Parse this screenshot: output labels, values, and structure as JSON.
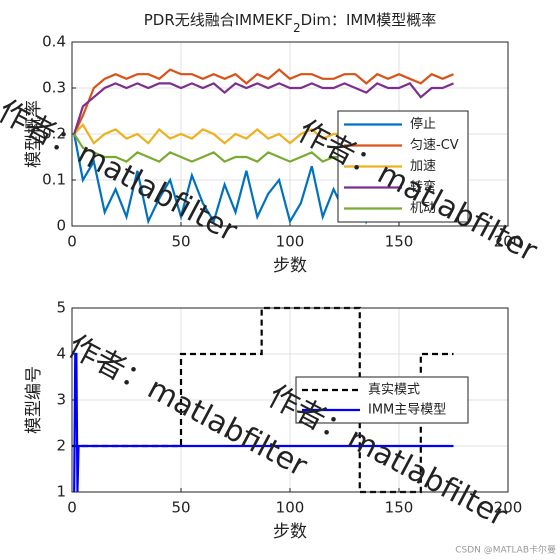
{
  "chart_data": [
    {
      "type": "line",
      "title": [
        "PDR无线融合IMMEKF",
        "2",
        "Dim：IMM模型概率"
      ],
      "xlabel": "步数",
      "ylabel": "模型概率",
      "x": [
        1,
        5,
        10,
        15,
        20,
        25,
        30,
        35,
        40,
        45,
        50,
        55,
        60,
        65,
        70,
        75,
        80,
        85,
        90,
        95,
        100,
        105,
        110,
        115,
        120,
        125,
        130,
        135,
        140,
        145,
        150,
        155,
        160,
        165,
        170,
        175
      ],
      "series": [
        {
          "name": "停止",
          "color": "#0072bd",
          "values": [
            0.2,
            0.1,
            0.14,
            0.03,
            0.08,
            0.02,
            0.12,
            0.01,
            0.06,
            0.1,
            0.02,
            0.11,
            0.05,
            0.01,
            0.09,
            0.03,
            0.12,
            0.02,
            0.07,
            0.1,
            0.01,
            0.05,
            0.13,
            0.02,
            0.08,
            0.03,
            0.11,
            0.01,
            0.06,
            0.1,
            0.02,
            0.09,
            0.04,
            0.12,
            0.02,
            0.05
          ]
        },
        {
          "name": "匀速-CV",
          "color": "#d95319",
          "values": [
            0.2,
            0.24,
            0.3,
            0.32,
            0.33,
            0.32,
            0.33,
            0.33,
            0.32,
            0.34,
            0.33,
            0.33,
            0.32,
            0.33,
            0.32,
            0.33,
            0.31,
            0.33,
            0.32,
            0.34,
            0.32,
            0.33,
            0.33,
            0.32,
            0.32,
            0.33,
            0.33,
            0.31,
            0.33,
            0.32,
            0.33,
            0.32,
            0.31,
            0.33,
            0.32,
            0.33
          ]
        },
        {
          "name": "加速",
          "color": "#edb120",
          "values": [
            0.2,
            0.22,
            0.18,
            0.2,
            0.21,
            0.19,
            0.2,
            0.18,
            0.21,
            0.19,
            0.2,
            0.19,
            0.21,
            0.2,
            0.18,
            0.2,
            0.19,
            0.21,
            0.19,
            0.2,
            0.18,
            0.2,
            0.21,
            0.19,
            0.2,
            0.2,
            0.18,
            0.2,
            0.19,
            0.21,
            0.19,
            0.2,
            0.18,
            0.2,
            0.19,
            0.2
          ]
        },
        {
          "name": "转弯",
          "color": "#7e2f8e",
          "values": [
            0.2,
            0.26,
            0.28,
            0.3,
            0.31,
            0.3,
            0.31,
            0.3,
            0.31,
            0.31,
            0.3,
            0.31,
            0.3,
            0.31,
            0.29,
            0.31,
            0.3,
            0.31,
            0.3,
            0.31,
            0.3,
            0.3,
            0.31,
            0.3,
            0.3,
            0.31,
            0.3,
            0.29,
            0.31,
            0.3,
            0.3,
            0.31,
            0.28,
            0.3,
            0.3,
            0.31
          ]
        },
        {
          "name": "机动",
          "color": "#77ac30",
          "values": [
            0.2,
            0.17,
            0.16,
            0.15,
            0.15,
            0.14,
            0.16,
            0.15,
            0.14,
            0.16,
            0.15,
            0.14,
            0.15,
            0.16,
            0.14,
            0.15,
            0.15,
            0.14,
            0.16,
            0.15,
            0.14,
            0.15,
            0.16,
            0.14,
            0.15,
            0.15,
            0.14,
            0.16,
            0.15,
            0.15,
            0.14,
            0.16,
            0.15,
            0.14,
            0.15,
            0.16
          ]
        }
      ],
      "xlim": [
        0,
        200
      ],
      "xticks": [
        0,
        50,
        100,
        150,
        200
      ],
      "ylim": [
        0,
        0.4
      ],
      "yticks": [
        0,
        0.1,
        0.2,
        0.3,
        0.4
      ],
      "grid": true,
      "legend": "southeast"
    },
    {
      "type": "line",
      "xlabel": "步数",
      "ylabel": "模型编号",
      "series": [
        {
          "name": "真实模式",
          "color": "#000000",
          "dash": true,
          "x": [
            0,
            50,
            50,
            87,
            87,
            132,
            132,
            160,
            160,
            175
          ],
          "values": [
            2,
            2,
            4,
            4,
            5,
            5,
            1,
            1,
            4,
            4
          ]
        },
        {
          "name": "IMM主导模型",
          "color": "#0000ff",
          "x": [
            1,
            1.5,
            2,
            2.5,
            3,
            175
          ],
          "values": [
            1,
            4,
            4,
            1,
            2,
            2
          ]
        }
      ],
      "xlim": [
        0,
        200
      ],
      "xticks": [
        0,
        50,
        100,
        150,
        200
      ],
      "ylim": [
        1,
        5
      ],
      "yticks": [
        1,
        2,
        3,
        4,
        5
      ],
      "grid": true,
      "legend": "east"
    }
  ],
  "watermarks": [
    "作者：matlabfilter",
    "作者：matlabfilter",
    "作者：matlabfilter",
    "作者：matlabfilter"
  ],
  "footer": "CSDN @MATLAB卡尔曼"
}
